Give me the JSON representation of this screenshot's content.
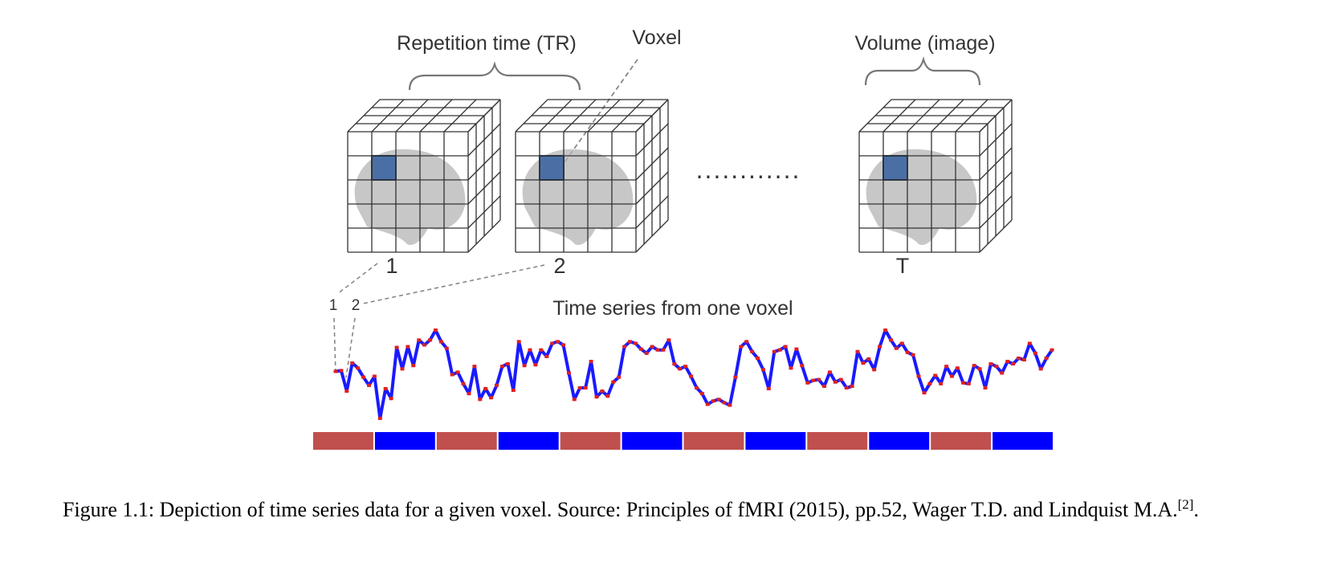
{
  "figure": {
    "labels": {
      "repetition_time": "Repetition time (TR)",
      "voxel": "Voxel",
      "volume": "Volume (image)",
      "volume_1": "1",
      "volume_2": "2",
      "volume_t": "T",
      "ellipsis": "............",
      "series_1": "1",
      "series_2": "2",
      "time_series_title": "Time series from one voxel"
    },
    "colors": {
      "grid_line": "#333333",
      "brain": "#b4b4b4",
      "voxel_fill": "#4a6fa5",
      "series_line": "#1a1aff",
      "series_marker": "#e02020",
      "block_a": "#c0504d",
      "block_b": "#0000ff"
    },
    "time_series": [
      0.62,
      0.63,
      0.38,
      0.72,
      0.66,
      0.55,
      0.45,
      0.56,
      0.05,
      0.41,
      0.29,
      0.91,
      0.65,
      0.92,
      0.69,
      1.0,
      0.94,
      1.0,
      1.12,
      0.98,
      0.9,
      0.58,
      0.61,
      0.47,
      0.35,
      0.68,
      0.28,
      0.41,
      0.3,
      0.45,
      0.68,
      0.71,
      0.39,
      0.98,
      0.69,
      0.88,
      0.7,
      0.88,
      0.8,
      0.96,
      0.98,
      0.94,
      0.6,
      0.28,
      0.42,
      0.42,
      0.74,
      0.31,
      0.38,
      0.32,
      0.49,
      0.55,
      0.92,
      0.98,
      0.96,
      0.89,
      0.84,
      0.92,
      0.88,
      0.88,
      1.0,
      0.71,
      0.65,
      0.68,
      0.56,
      0.42,
      0.35,
      0.22,
      0.26,
      0.28,
      0.24,
      0.21,
      0.55,
      0.92,
      0.98,
      0.86,
      0.78,
      0.64,
      0.41,
      0.86,
      0.88,
      0.92,
      0.66,
      0.89,
      0.69,
      0.48,
      0.51,
      0.52,
      0.44,
      0.61,
      0.49,
      0.52,
      0.42,
      0.44,
      0.86,
      0.72,
      0.77,
      0.64,
      0.92,
      1.12,
      1.0,
      0.9,
      0.96,
      0.85,
      0.82,
      0.56,
      0.36,
      0.47,
      0.57,
      0.47,
      0.68,
      0.56,
      0.66,
      0.48,
      0.47,
      0.69,
      0.65,
      0.42,
      0.71,
      0.68,
      0.6,
      0.74,
      0.71,
      0.78,
      0.76,
      0.96,
      0.84,
      0.65,
      0.78,
      0.88
    ],
    "stimulus_blocks": [
      "a",
      "b",
      "a",
      "b",
      "a",
      "b",
      "a",
      "b",
      "a",
      "b",
      "a",
      "b"
    ]
  },
  "caption": {
    "text": "Figure 1.1: Depiction of time series data for a given voxel.  Source: Principles of fMRI (2015), pp.52, Wager T.D. and Lindquist M.A.",
    "reference": "[2]",
    "end": "."
  }
}
